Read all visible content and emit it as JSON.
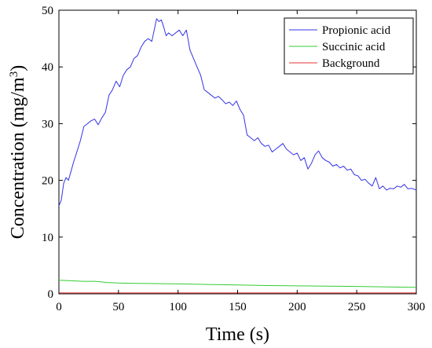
{
  "chart_data": {
    "type": "line",
    "title": "",
    "xlabel": "Time (s)",
    "ylabel_main": "Concentration (mg/m",
    "ylabel_sup": "3",
    "ylabel_close": ")",
    "xlim": [
      0,
      300
    ],
    "ylim": [
      0,
      50
    ],
    "xticks": [
      0,
      50,
      100,
      150,
      200,
      250,
      300
    ],
    "yticks": [
      0,
      10,
      20,
      30,
      40,
      50
    ],
    "grid": false,
    "legend": "top-right",
    "series": [
      {
        "name": "Propionic acid",
        "color": "#3333e6",
        "x": [
          0,
          2,
          4,
          6,
          8,
          10,
          12,
          15,
          18,
          21,
          24,
          27,
          30,
          33,
          36,
          39,
          42,
          45,
          48,
          51,
          54,
          57,
          60,
          63,
          66,
          69,
          72,
          75,
          78,
          80,
          82,
          84,
          86,
          88,
          90,
          92,
          95,
          98,
          101,
          104,
          107,
          110,
          113,
          116,
          119,
          122,
          125,
          128,
          131,
          134,
          137,
          140,
          143,
          146,
          149,
          152,
          155,
          158,
          161,
          164,
          167,
          170,
          173,
          176,
          179,
          182,
          185,
          188,
          191,
          194,
          197,
          200,
          203,
          206,
          209,
          212,
          215,
          218,
          221,
          224,
          227,
          230,
          233,
          236,
          239,
          242,
          245,
          248,
          251,
          254,
          257,
          260,
          263,
          266,
          269,
          272,
          275,
          278,
          281,
          284,
          287,
          290,
          293,
          296,
          300
        ],
        "y": [
          15.5,
          16.5,
          19.5,
          20.5,
          20.0,
          21.5,
          23.0,
          25.0,
          27.0,
          29.5,
          30.0,
          30.5,
          30.8,
          29.8,
          31.0,
          32.0,
          35.0,
          36.0,
          37.5,
          36.5,
          38.5,
          39.5,
          40.0,
          41.5,
          42.0,
          43.5,
          44.5,
          45.0,
          44.5,
          46.5,
          48.5,
          48.0,
          48.3,
          47.0,
          45.5,
          46.0,
          45.5,
          46.0,
          46.5,
          45.5,
          46.5,
          43.0,
          41.5,
          40.0,
          38.5,
          36.0,
          35.5,
          35.0,
          34.5,
          34.8,
          34.2,
          33.5,
          33.8,
          33.2,
          34.0,
          32.5,
          31.5,
          28.0,
          27.5,
          27.0,
          27.5,
          26.5,
          26.0,
          26.2,
          25.0,
          25.5,
          26.0,
          26.5,
          25.5,
          25.0,
          24.5,
          24.8,
          23.5,
          24.0,
          22.0,
          23.0,
          24.5,
          25.2,
          24.0,
          23.5,
          23.2,
          22.5,
          22.8,
          22.2,
          22.5,
          21.8,
          22.0,
          21.0,
          20.8,
          20.0,
          20.2,
          19.5,
          19.0,
          20.5,
          18.5,
          19.0,
          18.3,
          18.6,
          18.5,
          19.0,
          18.8,
          19.3,
          18.5,
          18.6,
          18.3
        ]
      },
      {
        "name": "Succinic acid",
        "color": "#33cc33",
        "x": [
          0,
          10,
          20,
          30,
          35,
          40,
          50,
          60,
          80,
          100,
          125,
          150,
          175,
          200,
          225,
          250,
          275,
          300
        ],
        "y": [
          2.4,
          2.3,
          2.2,
          2.2,
          2.1,
          2.0,
          1.9,
          1.85,
          1.8,
          1.75,
          1.65,
          1.55,
          1.45,
          1.4,
          1.35,
          1.3,
          1.2,
          1.15
        ]
      },
      {
        "name": "Background",
        "color": "#e63333",
        "x": [
          0,
          300
        ],
        "y": [
          0.15,
          0.15
        ]
      }
    ]
  }
}
